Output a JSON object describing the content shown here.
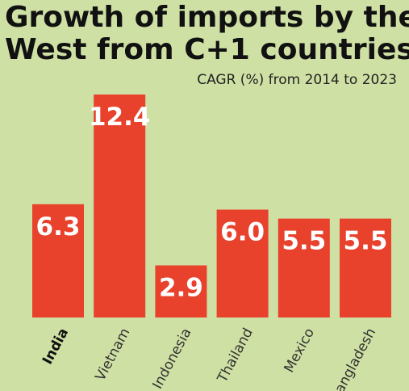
{
  "title_line1": "Growth of imports by the",
  "title_line2": "West from C+1 countries",
  "subtitle": "CAGR (%) from 2014 to 2023",
  "colors": {
    "bar": "#e8412c",
    "background": "#cfe0a4",
    "value_text": "#ffffff"
  },
  "chart_data": {
    "type": "bar",
    "categories": [
      "India",
      "Vietnam",
      "Indonesia",
      "Thailand",
      "Mexico",
      "Bangladesh"
    ],
    "values": [
      6.3,
      12.4,
      2.9,
      6.0,
      5.5,
      5.5
    ],
    "value_labels": [
      "6.3",
      "12.4",
      "2.9",
      "6.0",
      "5.5",
      "5.5"
    ],
    "highlighted_category": "India",
    "title": "Growth of imports by the West from C+1 countries",
    "subtitle": "CAGR (%) from 2014 to 2023",
    "xlabel": "",
    "ylabel": "",
    "ylim": [
      0,
      12.4
    ],
    "grid": false,
    "legend": "none"
  }
}
